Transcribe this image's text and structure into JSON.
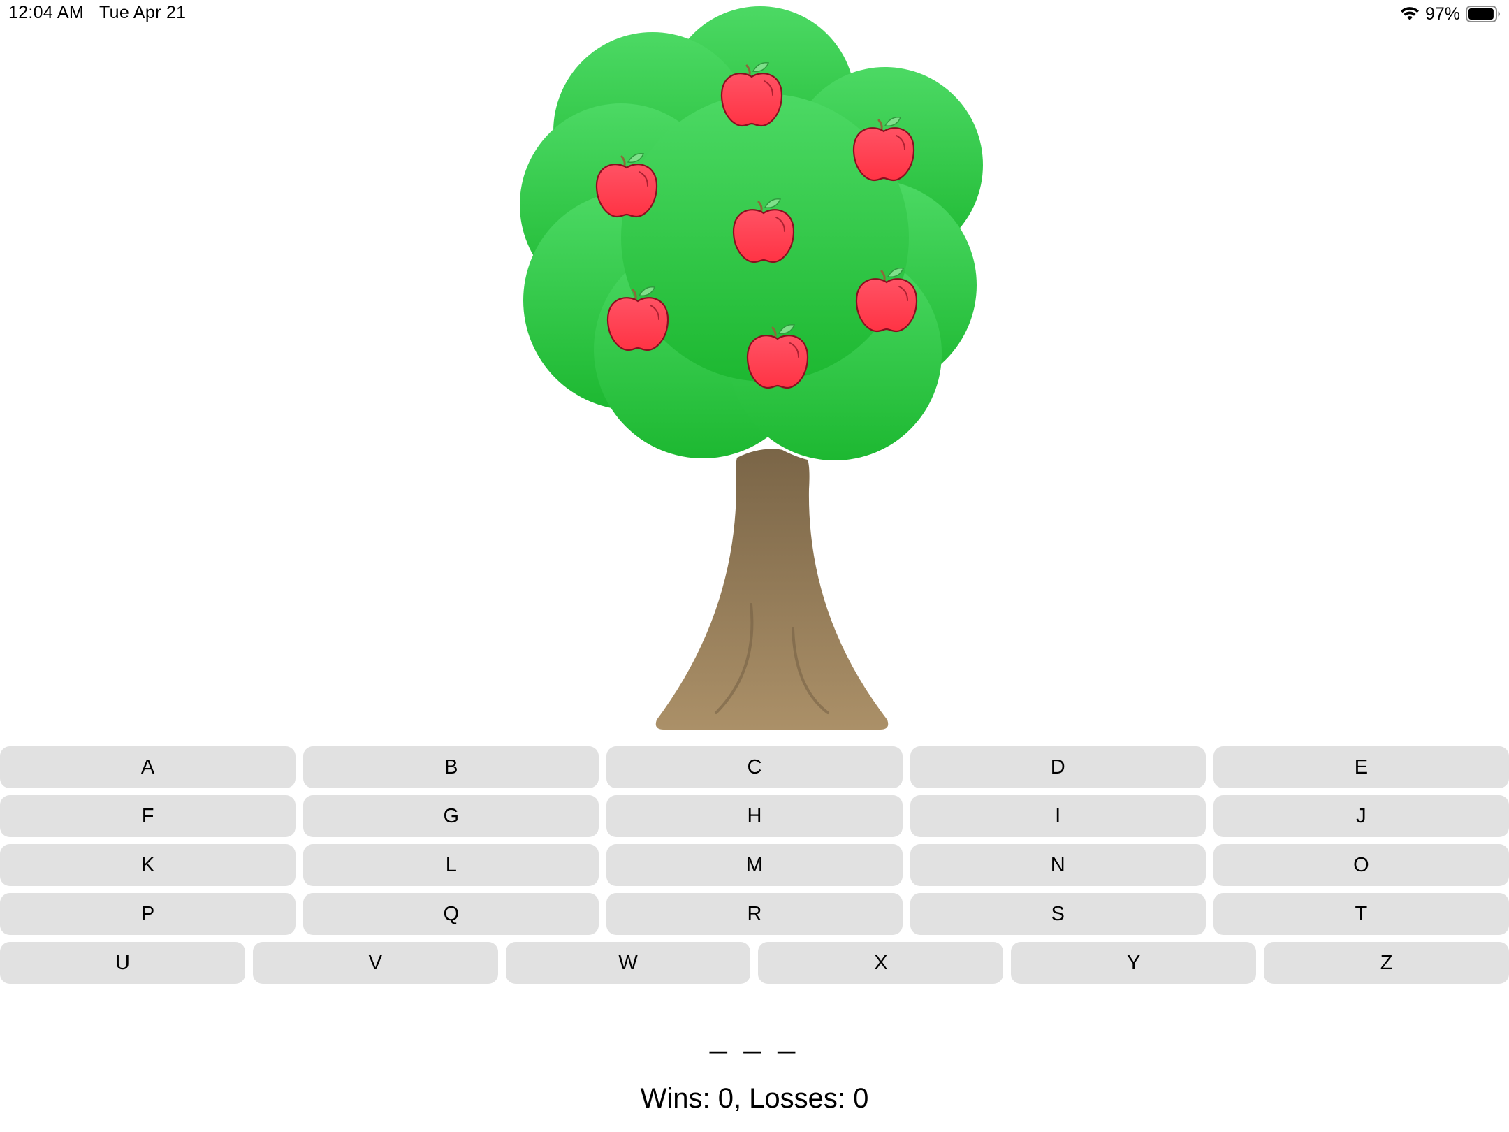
{
  "status_bar": {
    "time": "12:04 AM",
    "date": "Tue Apr 21",
    "battery_percent": "97%",
    "battery_level": 0.97,
    "icons": [
      "wifi-icon",
      "battery-icon"
    ]
  },
  "tree": {
    "apples_remaining": 7,
    "canopy_colors": [
      "#4cd964",
      "#1db831"
    ],
    "trunk_colors": [
      "#7a6547",
      "#ab9068"
    ],
    "apple_color": "#ff3b4b"
  },
  "keyboard": {
    "rows": [
      [
        "A",
        "B",
        "C",
        "D",
        "E"
      ],
      [
        "F",
        "G",
        "H",
        "I",
        "J"
      ],
      [
        "K",
        "L",
        "M",
        "N",
        "O"
      ],
      [
        "P",
        "Q",
        "R",
        "S",
        "T"
      ],
      [
        "U",
        "V",
        "W",
        "X",
        "Y",
        "Z"
      ]
    ]
  },
  "game": {
    "word_display": "_ _ _",
    "score_text": "Wins: 0, Losses: 0"
  }
}
